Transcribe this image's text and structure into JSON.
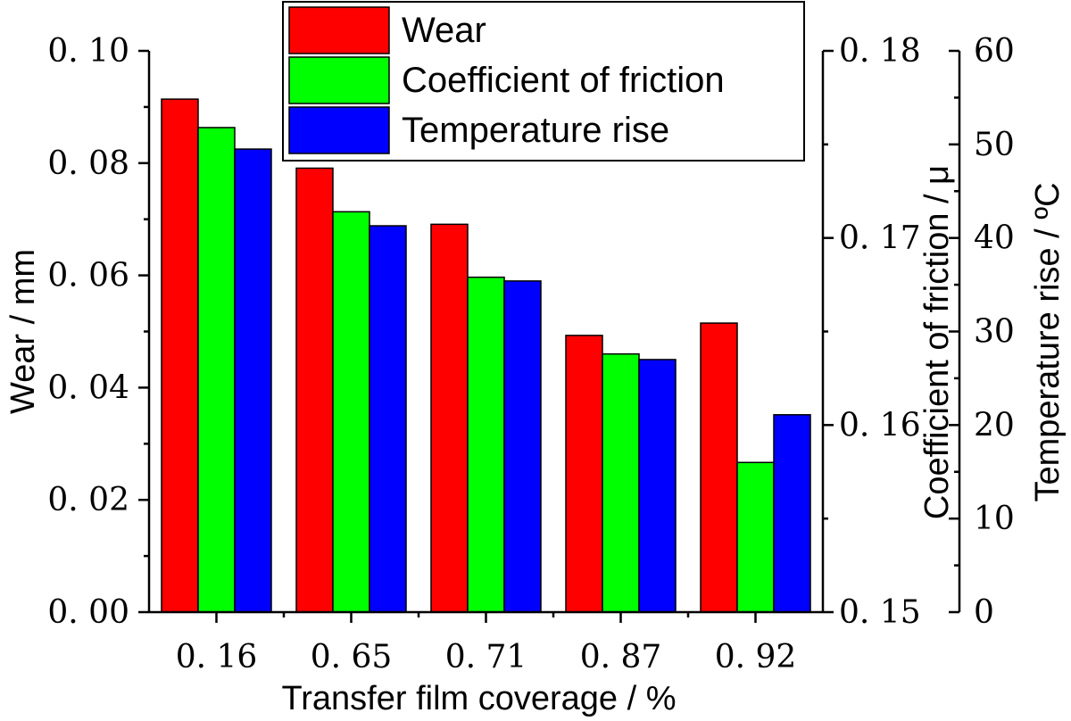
{
  "chart_data": {
    "type": "bar",
    "xlabel": "Transfer film coverage / %",
    "categories": [
      "0. 16",
      "0. 65",
      "0. 71",
      "0. 87",
      "0. 92"
    ],
    "series": [
      {
        "name": "Wear",
        "color": "#ff0000",
        "axis": "y1",
        "values": [
          0.0914,
          0.0791,
          0.0691,
          0.0493,
          0.0515
        ]
      },
      {
        "name": "Coefficient of friction",
        "color": "#00ff00",
        "axis": "y2",
        "values": [
          0.1759,
          0.1714,
          0.1679,
          0.1638,
          0.158
        ]
      },
      {
        "name": "Temperature rise",
        "color": "#0000ff",
        "axis": "y3",
        "values": [
          49.5,
          41.3,
          35.4,
          27.0,
          21.1
        ]
      }
    ],
    "axes": {
      "y1": {
        "label": "Wear / mm",
        "min": 0,
        "max": 0.1,
        "major_ticks": [
          0,
          0.02,
          0.04,
          0.06,
          0.08,
          0.1
        ],
        "tick_labels": [
          "0. 00",
          "0. 02",
          "0. 04",
          "0. 06",
          "0. 08",
          "0. 10"
        ]
      },
      "y2": {
        "label": "Coefficient of friction / μ",
        "min": 0.15,
        "max": 0.18,
        "major_ticks": [
          0.15,
          0.16,
          0.17,
          0.18
        ],
        "tick_labels": [
          "0. 15",
          "0. 16",
          "0. 17",
          "0. 18"
        ]
      },
      "y3": {
        "label": "Temperature rise / ºC",
        "min": 0,
        "max": 60,
        "major_ticks": [
          0,
          10,
          20,
          30,
          40,
          50,
          60
        ],
        "tick_labels": [
          "0",
          "10",
          "20",
          "30",
          "40",
          "50",
          "60"
        ]
      }
    },
    "legend": {
      "position": "top-center",
      "entries": [
        "Wear",
        "Coefficient of friction",
        "Temperature rise"
      ]
    }
  }
}
